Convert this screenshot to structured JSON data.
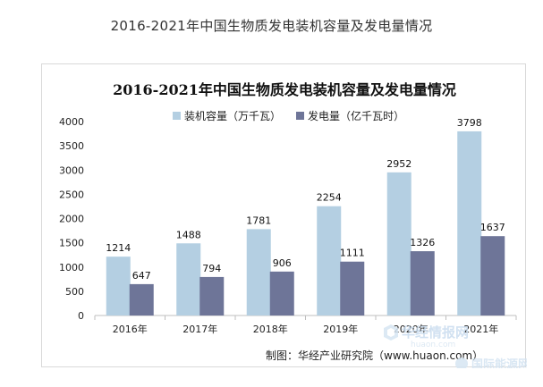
{
  "page": {
    "title": "2016-2021年中国生物质发电装机容量及发电量情况"
  },
  "chart_data": {
    "type": "bar",
    "title": "2016-2021年中国生物质发电装机容量及发电量情况",
    "categories": [
      "2016年",
      "2017年",
      "2018年",
      "2019年",
      "2020年",
      "2021年"
    ],
    "series": [
      {
        "name": "装机容量（万千瓦）",
        "color": "#b4cfe2",
        "values": [
          1214,
          1488,
          1781,
          2254,
          2952,
          3798
        ]
      },
      {
        "name": "发电量（亿千瓦时）",
        "color": "#6e7598",
        "values": [
          647,
          794,
          906,
          1111,
          1326,
          1637
        ]
      }
    ],
    "ylim": [
      0,
      4000
    ],
    "yticks": [
      0,
      500,
      1000,
      1500,
      2000,
      2500,
      3000,
      3500,
      4000
    ],
    "grid": false,
    "legend_position": "top-center",
    "xlabel": "",
    "ylabel": ""
  },
  "source": {
    "text": "制图：华经产业研究院（www.huaon.com）"
  },
  "watermarks": {
    "huajing_logo": "华经情报网",
    "huajing_url": "huaon.com",
    "bottom_logo": "国际能源网"
  }
}
